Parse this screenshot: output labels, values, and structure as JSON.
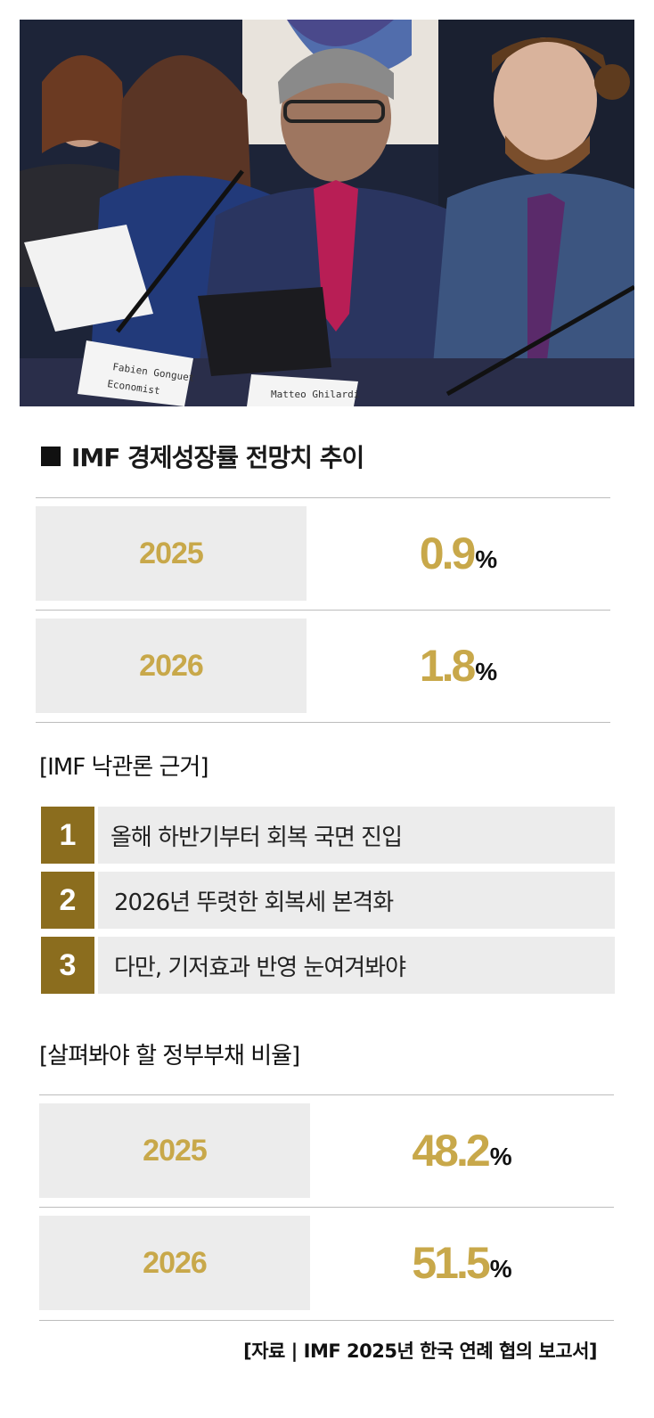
{
  "photo": {
    "nameplate_1": "Fabien Gonguet",
    "nameplate_1_sub": "Economist",
    "nameplate_2": "Matteo Ghilardi"
  },
  "growth": {
    "title": "IMF 경제성장률 전망치 추이",
    "rows": [
      {
        "year": "2025",
        "value": "0.9",
        "unit": "%"
      },
      {
        "year": "2026",
        "value": "1.8",
        "unit": "%"
      }
    ]
  },
  "reasons": {
    "title": "[IMF 낙관론 근거]",
    "items": [
      {
        "num": "1",
        "text": "올해 하반기부터 회복 국면 진입"
      },
      {
        "num": "2",
        "text": "2026년 뚜렷한 회복세 본격화"
      },
      {
        "num": "3",
        "text": "다만, 기저효과 반영 눈여겨봐야"
      }
    ]
  },
  "debt": {
    "title": "[살펴봐야 할 정부부채 비율]",
    "rows": [
      {
        "year": "2025",
        "value": "48.2",
        "unit": "%"
      },
      {
        "year": "2026",
        "value": "51.5",
        "unit": "%"
      }
    ]
  },
  "source": "[자료 | IMF 2025년 한국 연례 협의 보고서]",
  "colors": {
    "gold": "#c8a84a",
    "badge": "#8b6d1e",
    "box": "#ececec"
  }
}
